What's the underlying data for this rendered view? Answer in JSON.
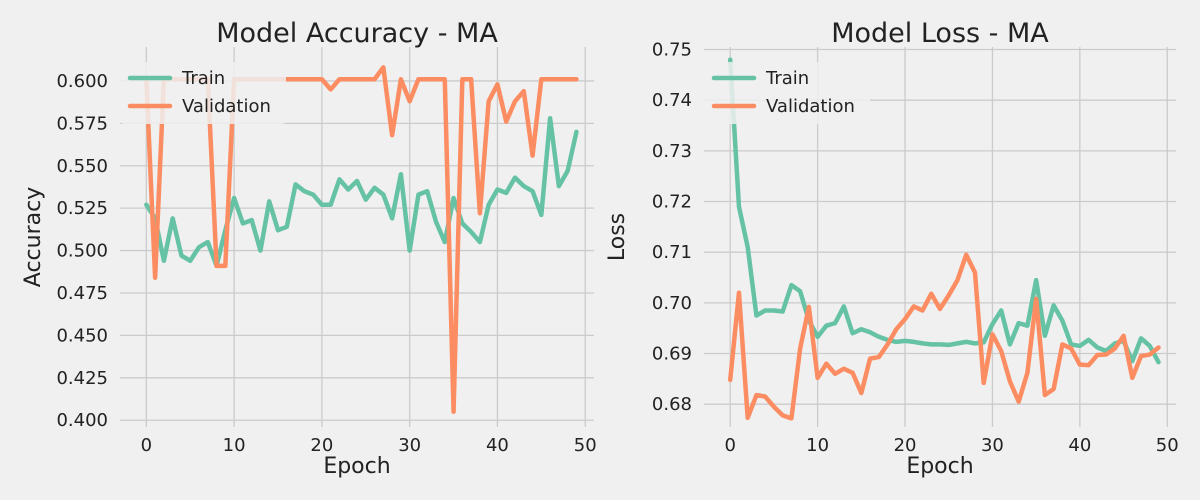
{
  "colors": {
    "train": "#66c2a5",
    "validation": "#fc8d62",
    "grid": "#cbcbcb",
    "background": "#f0f0f0"
  },
  "chart_data": [
    {
      "type": "line",
      "title": "Model Accuracy - MA",
      "xlabel": "Epoch",
      "ylabel": "Accuracy",
      "xlim": [
        -3,
        51
      ],
      "ylim": [
        0.396,
        0.62
      ],
      "xticks": [
        0,
        10,
        20,
        30,
        40,
        50
      ],
      "yticks": [
        0.4,
        0.425,
        0.45,
        0.475,
        0.5,
        0.525,
        0.55,
        0.575,
        0.6
      ],
      "ytick_labels": [
        "0.400",
        "0.425",
        "0.450",
        "0.475",
        "0.500",
        "0.525",
        "0.550",
        "0.575",
        "0.600"
      ],
      "grid": true,
      "legend": "top-left",
      "x": [
        0,
        1,
        2,
        3,
        4,
        5,
        6,
        7,
        8,
        9,
        10,
        11,
        12,
        13,
        14,
        15,
        16,
        17,
        18,
        19,
        20,
        21,
        22,
        23,
        24,
        25,
        26,
        27,
        28,
        29,
        30,
        31,
        32,
        33,
        34,
        35,
        36,
        37,
        38,
        39,
        40,
        41,
        42,
        43,
        44,
        45,
        46,
        47,
        48,
        49
      ],
      "series": [
        {
          "name": "Train",
          "values": [
            0.527,
            0.519,
            0.494,
            0.519,
            0.497,
            0.494,
            0.502,
            0.505,
            0.491,
            0.512,
            0.531,
            0.516,
            0.518,
            0.5,
            0.529,
            0.512,
            0.514,
            0.539,
            0.535,
            0.533,
            0.527,
            0.527,
            0.542,
            0.536,
            0.541,
            0.53,
            0.537,
            0.533,
            0.519,
            0.545,
            0.5,
            0.533,
            0.535,
            0.517,
            0.505,
            0.531,
            0.516,
            0.511,
            0.505,
            0.527,
            0.536,
            0.534,
            0.543,
            0.538,
            0.535,
            0.521,
            0.578,
            0.538,
            0.547,
            0.57
          ]
        },
        {
          "name": "Validation",
          "values": [
            0.601,
            0.484,
            0.601,
            0.601,
            0.601,
            0.601,
            0.601,
            0.601,
            0.491,
            0.491,
            0.601,
            0.601,
            0.601,
            0.601,
            0.601,
            0.601,
            0.601,
            0.601,
            0.601,
            0.601,
            0.601,
            0.595,
            0.601,
            0.601,
            0.601,
            0.601,
            0.601,
            0.608,
            0.568,
            0.601,
            0.588,
            0.601,
            0.601,
            0.601,
            0.601,
            0.405,
            0.601,
            0.601,
            0.522,
            0.588,
            0.598,
            0.576,
            0.588,
            0.594,
            0.556,
            0.601,
            0.601,
            0.601,
            0.601,
            0.601
          ]
        }
      ]
    },
    {
      "type": "line",
      "title": "Model Loss - MA",
      "xlabel": "Epoch",
      "ylabel": "Loss",
      "xlim": [
        -3,
        51
      ],
      "ylim": [
        0.6755,
        0.7505
      ],
      "xticks": [
        0,
        10,
        20,
        30,
        40,
        50
      ],
      "yticks": [
        0.68,
        0.69,
        0.7,
        0.71,
        0.72,
        0.73,
        0.74,
        0.75
      ],
      "ytick_labels": [
        "0.68",
        "0.69",
        "0.70",
        "0.71",
        "0.72",
        "0.73",
        "0.74",
        "0.75"
      ],
      "grid": true,
      "legend": "top-left",
      "x": [
        0,
        1,
        2,
        3,
        4,
        5,
        6,
        7,
        8,
        9,
        10,
        11,
        12,
        13,
        14,
        15,
        16,
        17,
        18,
        19,
        20,
        21,
        22,
        23,
        24,
        25,
        26,
        27,
        28,
        29,
        30,
        31,
        32,
        33,
        34,
        35,
        36,
        37,
        38,
        39,
        40,
        41,
        42,
        43,
        44,
        45,
        46,
        47,
        48,
        49
      ],
      "series": [
        {
          "name": "Train",
          "values": [
            0.748,
            0.719,
            0.711,
            0.6975,
            0.6985,
            0.6985,
            0.6983,
            0.7035,
            0.7023,
            0.6965,
            0.6933,
            0.6955,
            0.696,
            0.6993,
            0.694,
            0.6948,
            0.6942,
            0.6933,
            0.6927,
            0.6923,
            0.6925,
            0.6923,
            0.692,
            0.6918,
            0.6918,
            0.6917,
            0.692,
            0.6923,
            0.692,
            0.6922,
            0.6958,
            0.6985,
            0.6918,
            0.696,
            0.6955,
            0.7045,
            0.6935,
            0.6995,
            0.6965,
            0.6918,
            0.6915,
            0.6927,
            0.6912,
            0.6905,
            0.692,
            0.6925,
            0.6885,
            0.693,
            0.6915,
            0.6883
          ]
        },
        {
          "name": "Validation",
          "values": [
            0.6848,
            0.702,
            0.6773,
            0.6818,
            0.6815,
            0.6795,
            0.6778,
            0.6772,
            0.691,
            0.6992,
            0.6852,
            0.688,
            0.686,
            0.687,
            0.6862,
            0.6822,
            0.689,
            0.6893,
            0.6918,
            0.6948,
            0.6968,
            0.6993,
            0.6985,
            0.7018,
            0.6988,
            0.7015,
            0.7045,
            0.7095,
            0.706,
            0.6842,
            0.6938,
            0.6905,
            0.6845,
            0.6805,
            0.6862,
            0.7008,
            0.6818,
            0.683,
            0.6918,
            0.691,
            0.6878,
            0.6877,
            0.6897,
            0.6898,
            0.691,
            0.6935,
            0.6852,
            0.6895,
            0.6898,
            0.6912
          ]
        }
      ]
    }
  ]
}
